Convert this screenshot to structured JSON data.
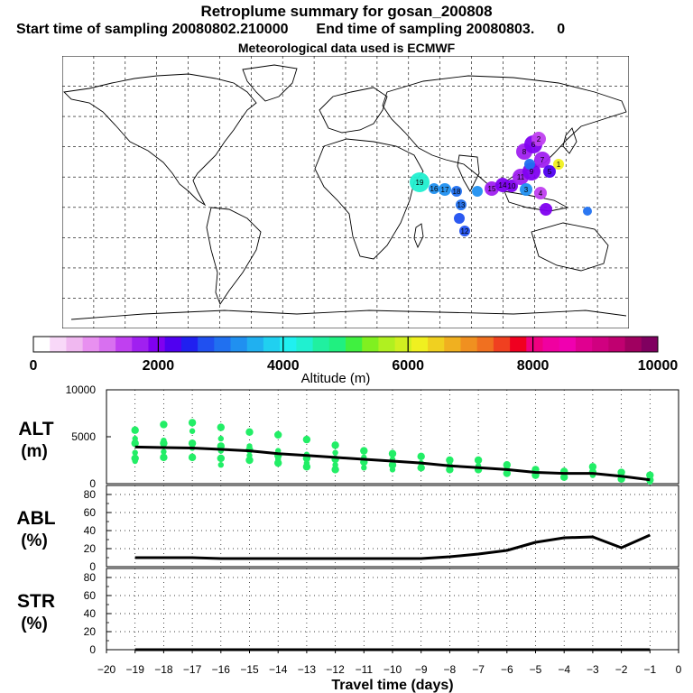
{
  "header": {
    "title": "Retroplume summary for gosan_200808",
    "start_label": "Start time of sampling 20080802.210000",
    "end_label": "End time of sampling 20080803.",
    "end_suffix": "0",
    "met_label": "Meteorological data used is ECMWF"
  },
  "colorbar": {
    "label": "Altitude (m)",
    "ticks": [
      "0",
      "2000",
      "4000",
      "6000",
      "8000",
      "10000"
    ],
    "colors": [
      "#ffffff",
      "#f8d8f8",
      "#f0b8f0",
      "#e890f0",
      "#d870f0",
      "#c040f0",
      "#a020f0",
      "#8000f0",
      "#5000f0",
      "#2020f0",
      "#2050f0",
      "#2070f0",
      "#2090f0",
      "#20b0f0",
      "#20d0f0",
      "#20f0f0",
      "#20f0d0",
      "#20f0a0",
      "#20f080",
      "#40f040",
      "#80f020",
      "#b0f020",
      "#d0f020",
      "#f0f020",
      "#f0d020",
      "#f0b020",
      "#f09020",
      "#f07020",
      "#f04020",
      "#f00020",
      "#f00080",
      "#f000a0",
      "#f000b0",
      "#e00090",
      "#d00080",
      "#c00070",
      "#a00060",
      "#800060"
    ]
  },
  "map": {
    "labels": [
      "19",
      "16",
      "17",
      "18",
      "13",
      "12",
      "15",
      "14",
      "10",
      "11",
      "9",
      "8",
      "6",
      "7",
      "5",
      "3",
      "4",
      "2",
      "1"
    ]
  },
  "chart_data": [
    {
      "type": "line",
      "panel": "ALT",
      "ylabel_line1": "ALT",
      "ylabel_line2": "(m)",
      "ylim": [
        0,
        10000
      ],
      "yticks": [
        "10000",
        "5000",
        "0"
      ],
      "x": [
        -19,
        -18,
        -17,
        -16,
        -15,
        -14,
        -13,
        -12,
        -11,
        -10,
        -9,
        -8,
        -7,
        -6,
        -5,
        -4,
        -3,
        -2,
        -1
      ],
      "series": [
        {
          "name": "median altitude",
          "values": [
            3900,
            3850,
            3800,
            3650,
            3500,
            3200,
            3000,
            2800,
            2600,
            2400,
            2200,
            1900,
            1700,
            1500,
            1200,
            1100,
            1100,
            800,
            400
          ]
        }
      ],
      "scatter": [
        {
          "x": -19,
          "y": [
            5700,
            4800,
            4300,
            3300,
            2700,
            2400
          ]
        },
        {
          "x": -18,
          "y": [
            6300,
            4600,
            4300,
            3400,
            2800
          ]
        },
        {
          "x": -17,
          "y": [
            6500,
            5600,
            4300,
            3800,
            2800
          ]
        },
        {
          "x": -16,
          "y": [
            6000,
            4800,
            4000,
            3500,
            2700,
            2000
          ]
        },
        {
          "x": -15,
          "y": [
            5500,
            4000,
            3600,
            3000,
            2500
          ]
        },
        {
          "x": -14,
          "y": [
            5200,
            3500,
            3000,
            2600,
            2200
          ]
        },
        {
          "x": -13,
          "y": [
            4700,
            3100,
            2700,
            2200,
            1800
          ]
        },
        {
          "x": -12,
          "y": [
            4100,
            3300,
            2600,
            2000,
            1500
          ]
        },
        {
          "x": -11,
          "y": [
            3500,
            2800,
            2300,
            1700
          ]
        },
        {
          "x": -10,
          "y": [
            3200,
            2600,
            2000,
            1500
          ]
        },
        {
          "x": -9,
          "y": [
            2900,
            2200,
            1700
          ]
        },
        {
          "x": -8,
          "y": [
            2500,
            2000,
            1500
          ]
        },
        {
          "x": -7,
          "y": [
            2500,
            1900,
            1500
          ]
        },
        {
          "x": -6,
          "y": [
            2000,
            1600,
            1100
          ]
        },
        {
          "x": -5,
          "y": [
            1500,
            1100,
            900
          ]
        },
        {
          "x": -4,
          "y": [
            1300,
            1000,
            700
          ]
        },
        {
          "x": -3,
          "y": [
            1800,
            1500,
            1200,
            900
          ]
        },
        {
          "x": -2,
          "y": [
            1200,
            800,
            500
          ]
        },
        {
          "x": -1,
          "y": [
            900,
            600,
            400,
            200
          ]
        }
      ]
    },
    {
      "type": "line",
      "panel": "ABL",
      "ylabel_line1": "ABL",
      "ylabel_line2": "(%)",
      "ylim": [
        0,
        90
      ],
      "yticks": [
        "80",
        "60",
        "40",
        "20",
        "0"
      ],
      "x": [
        -19,
        -18,
        -17,
        -16,
        -15,
        -14,
        -13,
        -12,
        -11,
        -10,
        -9,
        -8,
        -7,
        -6,
        -5,
        -4,
        -3,
        -2,
        -1
      ],
      "series": [
        {
          "name": "ABL fraction",
          "values": [
            10,
            10,
            10,
            9,
            9,
            9,
            9,
            9,
            9,
            9,
            9,
            11,
            14,
            18,
            27,
            32,
            33,
            21,
            35
          ]
        }
      ]
    },
    {
      "type": "line",
      "panel": "STR",
      "ylabel_line1": "STR",
      "ylabel_line2": "(%)",
      "ylim": [
        0,
        90
      ],
      "yticks": [
        "80",
        "60",
        "40",
        "20",
        "0"
      ],
      "xlabel": "Travel time (days)",
      "xlim": [
        -20,
        0
      ],
      "xticks": [
        "−20",
        "−19",
        "−18",
        "−17",
        "−16",
        "−15",
        "−14",
        "−13",
        "−12",
        "−11",
        "−10",
        "−9",
        "−8",
        "−7",
        "−6",
        "−5",
        "−4",
        "−3",
        "−2",
        "−1",
        "0"
      ],
      "x": [
        -19,
        -18,
        -17,
        -16,
        -15,
        -14,
        -13,
        -12,
        -11,
        -10,
        -9,
        -8,
        -7,
        -6,
        -5,
        -4,
        -3,
        -2,
        -1
      ],
      "series": [
        {
          "name": "STR fraction",
          "values": [
            0,
            0,
            0,
            0,
            0,
            0,
            0,
            0,
            0,
            0,
            0,
            0,
            0,
            0,
            0,
            0,
            0,
            0,
            0
          ]
        }
      ]
    }
  ]
}
